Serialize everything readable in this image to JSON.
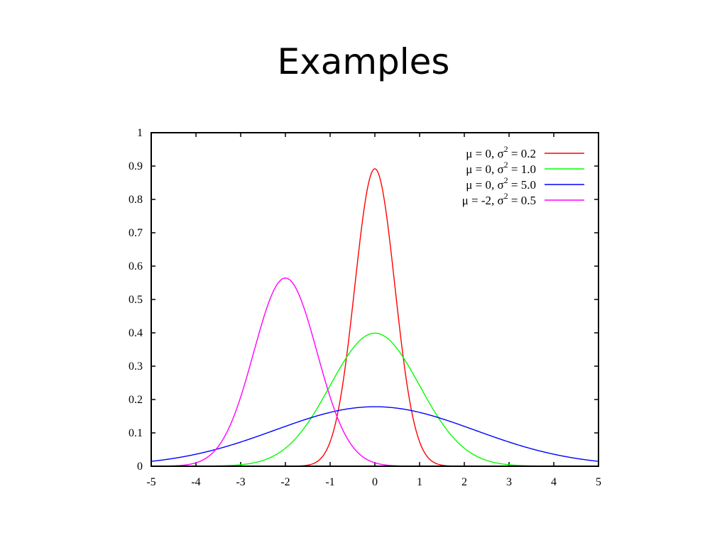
{
  "slide": {
    "title": "Examples"
  },
  "chart_data": {
    "type": "line",
    "title": "",
    "xlabel": "",
    "ylabel": "",
    "xlim": [
      -5,
      5
    ],
    "ylim": [
      0,
      1
    ],
    "grid": false,
    "legend_position": "top-right",
    "x_ticks": [
      -5,
      -4,
      -3,
      -2,
      -1,
      0,
      1,
      2,
      3,
      4,
      5
    ],
    "x_tick_labels": [
      "-5",
      "-4",
      "-3",
      "-2",
      "-1",
      "0",
      "1",
      "2",
      "3",
      "4",
      "5"
    ],
    "y_ticks": [
      0,
      0.1,
      0.2,
      0.3,
      0.4,
      0.5,
      0.6,
      0.7,
      0.8,
      0.9,
      1
    ],
    "y_tick_labels": [
      "0",
      "0.1",
      "0.2",
      "0.3",
      "0.4",
      "0.5",
      "0.6",
      "0.7",
      "0.8",
      "0.9",
      "1"
    ],
    "x": [
      -5,
      -4.5,
      -4,
      -3.5,
      -3,
      -2.5,
      -2,
      -1.5,
      -1,
      -0.5,
      0,
      0.5,
      1,
      1.5,
      2,
      2.5,
      3,
      3.5,
      4,
      4.5,
      5
    ],
    "series": [
      {
        "name": "μ =  0, σ² = 0.2",
        "legend": {
          "prefix": "μ =  0, σ",
          "sup": "2",
          "suffix": " = 0.2"
        },
        "color": "#ff0000",
        "mu": 0,
        "variance": 0.2,
        "values": [
          0,
          0,
          0,
          0,
          0,
          0,
          0,
          0.004,
          0.073,
          0.479,
          0.892,
          0.479,
          0.073,
          0.004,
          0,
          0,
          0,
          0,
          0,
          0,
          0
        ]
      },
      {
        "name": "μ =  0, σ² = 1.0",
        "legend": {
          "prefix": "μ =  0, σ",
          "sup": "2",
          "suffix": " = 1.0"
        },
        "color": "#00ff00",
        "mu": 0,
        "variance": 1.0,
        "values": [
          0,
          0,
          0.0001,
          0.0009,
          0.004,
          0.018,
          0.054,
          0.13,
          0.242,
          0.352,
          0.399,
          0.352,
          0.242,
          0.13,
          0.054,
          0.018,
          0.004,
          0.0009,
          0.0001,
          0,
          0
        ]
      },
      {
        "name": "μ =  0, σ² = 5.0",
        "legend": {
          "prefix": "μ =  0, σ",
          "sup": "2",
          "suffix": " = 5.0"
        },
        "color": "#0000ff",
        "mu": 0,
        "variance": 5.0,
        "values": [
          0.015,
          0.024,
          0.036,
          0.052,
          0.073,
          0.096,
          0.12,
          0.142,
          0.161,
          0.174,
          0.178,
          0.174,
          0.161,
          0.142,
          0.12,
          0.096,
          0.073,
          0.052,
          0.036,
          0.024,
          0.015
        ]
      },
      {
        "name": "μ = -2, σ² = 0.5",
        "legend": {
          "prefix": "μ = -2, σ",
          "sup": "2",
          "suffix": " = 0.5"
        },
        "color": "#ff00ff",
        "mu": -2,
        "variance": 0.5,
        "values": [
          0,
          0.0001,
          0.0103,
          0.0583,
          0.208,
          0.439,
          0.564,
          0.439,
          0.208,
          0.0583,
          0.0103,
          0.0011,
          0.0001,
          0,
          0,
          0,
          0,
          0,
          0,
          0,
          0
        ]
      }
    ]
  }
}
